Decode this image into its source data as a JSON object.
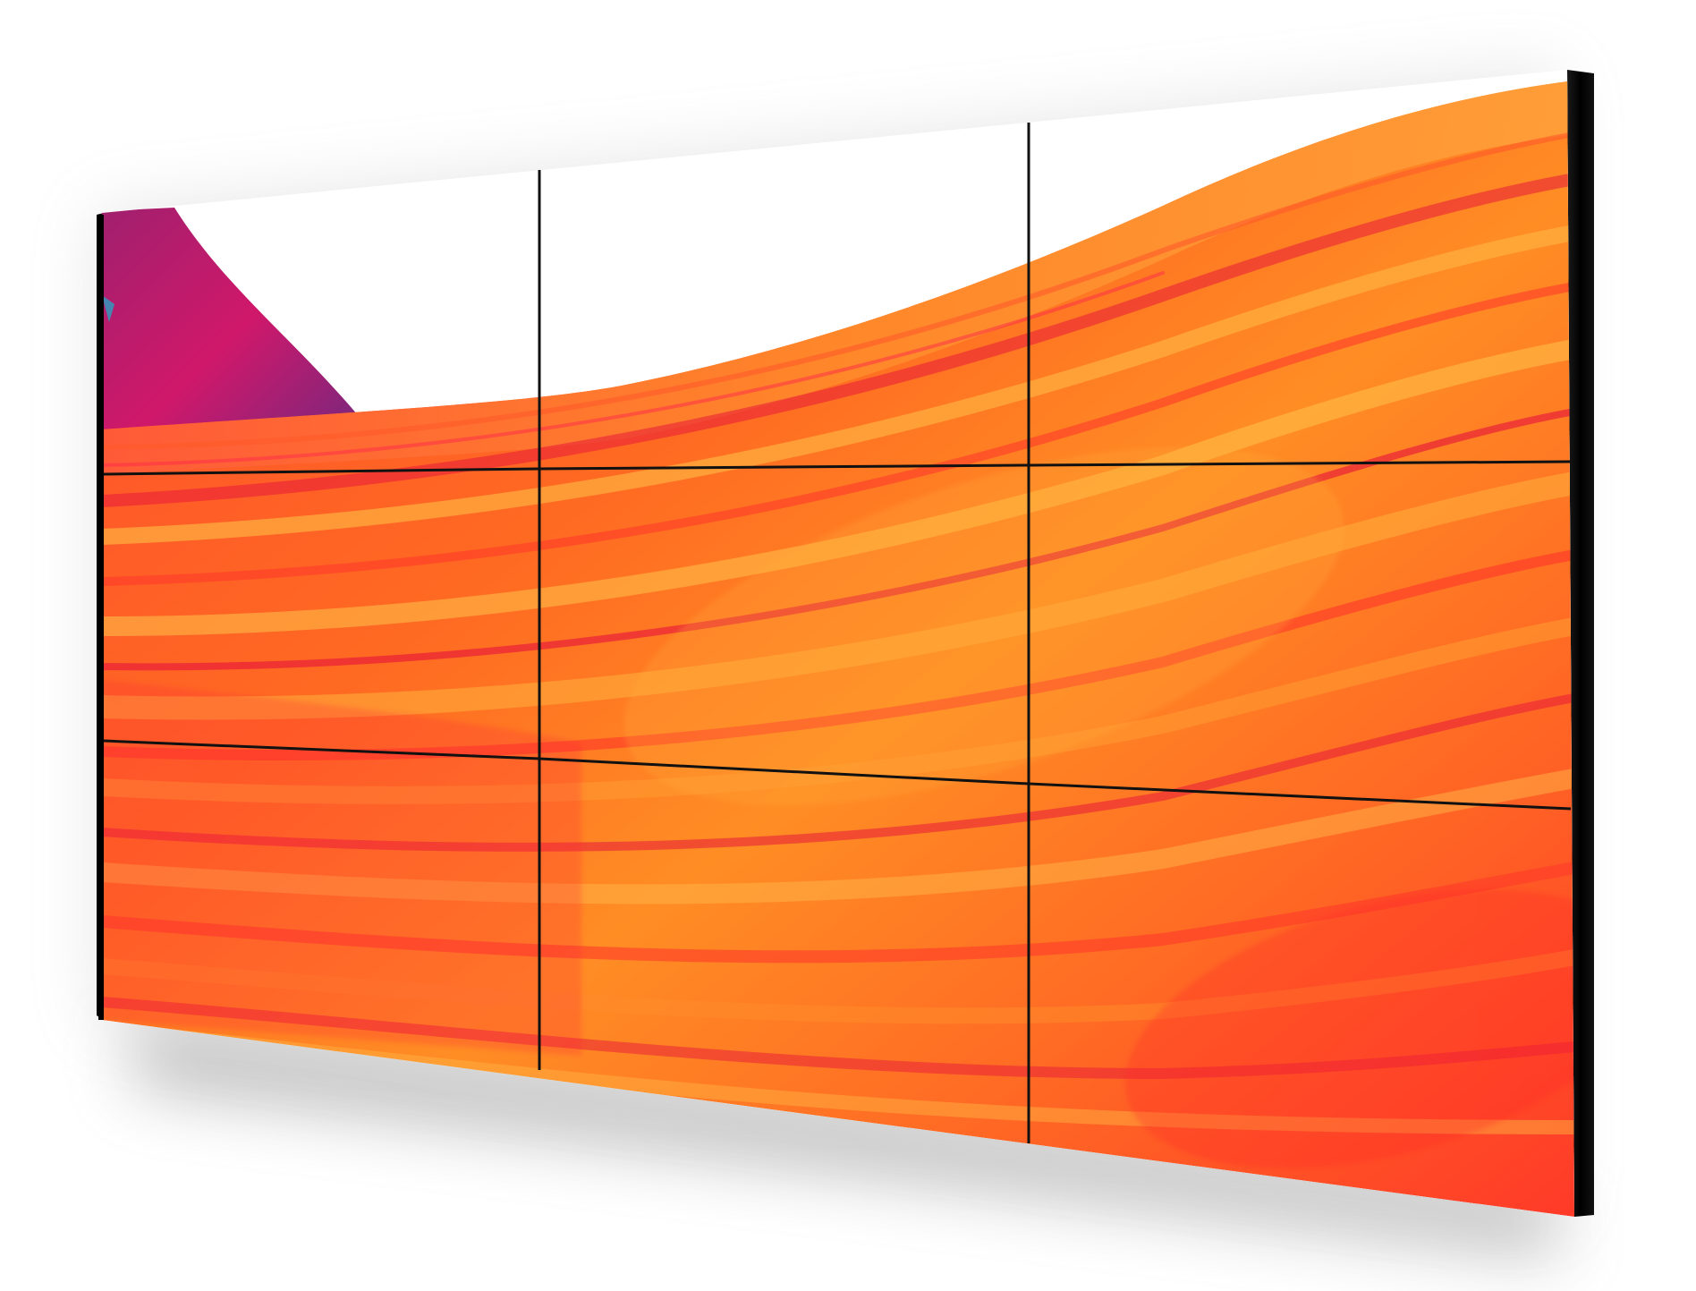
{
  "scene": {
    "subject": "video-wall",
    "grid": {
      "rows": 3,
      "cols": 3
    },
    "colors": {
      "background": "#ffffff",
      "bezel": "#000000",
      "seam": "#111111",
      "ribbon_red": "#ff3b2a",
      "ribbon_orange": "#ff8a1e",
      "ribbon_amber": "#ffab3a",
      "ribbon_crimson": "#e8193a",
      "accent_magenta": "#c0186b",
      "accent_purple": "#6a2a7a",
      "shadow": "#8a8a8a"
    }
  }
}
